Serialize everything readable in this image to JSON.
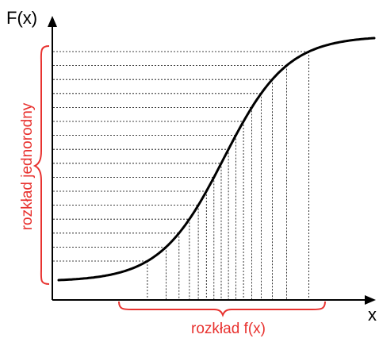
{
  "labels": {
    "y_axis": "F(x)",
    "x_axis": "x",
    "vertical_brace": "rozkład jednorodny",
    "horizontal_brace": "rozkład f(x)"
  },
  "colors": {
    "axis": "#000000",
    "curve": "#000000",
    "guide_lines": "#000000",
    "accent": "#e8322f"
  },
  "icons": {
    "y_arrow": "arrow-up-icon",
    "x_arrow": "arrow-right-icon",
    "left_brace": "curly-brace-left-icon",
    "bottom_brace": "curly-brace-bottom-icon"
  },
  "sampling": {
    "uniform_levels": 16
  }
}
